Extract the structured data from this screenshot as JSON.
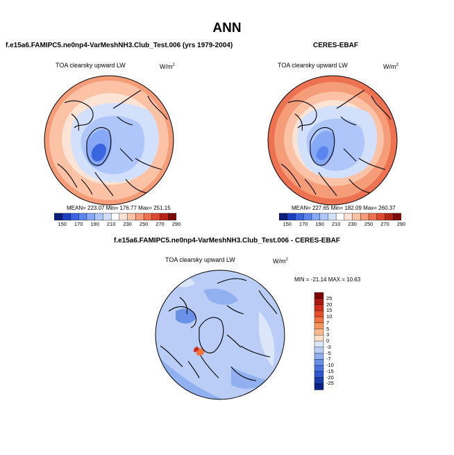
{
  "main_title": "ANN",
  "colors": {
    "abs_scale": [
      "#0a1e7a",
      "#1c3fbf",
      "#3a64e0",
      "#5c86ee",
      "#86a8f5",
      "#aec6fa",
      "#d3e0fb",
      "#ffffff",
      "#fde3d3",
      "#fbc2a6",
      "#f59c78",
      "#ec7251",
      "#dc4a31",
      "#b52616",
      "#7c0c06"
    ],
    "diff_scale": [
      "#7a0706",
      "#aa1a12",
      "#cf2e1c",
      "#e4502b",
      "#ef7440",
      "#f5975f",
      "#f9bb8e",
      "#fde0c7",
      "#dbe6fa",
      "#b9cdf6",
      "#90b0f0",
      "#6a91e8",
      "#4a72de",
      "#2f55cc",
      "#1b3ba8",
      "#0b2384"
    ],
    "continent_outline": "#000000"
  },
  "panels": [
    {
      "title": "f.e15a6.FAMIPC5.ne0np4-VarMeshNH3.Club_Test.006 (yrs 1979-2004)",
      "variable": "TOA clearsky upward LW",
      "units": "W/m",
      "units_sup": "2",
      "stats": "MEAN= 223.07  Min= 176.77  Max= 251.15"
    },
    {
      "title": "CERES-EBAF",
      "variable": "TOA clearsky upward LW",
      "units": "W/m",
      "units_sup": "2",
      "stats": "MEAN= 227.65  Min= 182.09  Max= 260.37"
    },
    {
      "title": "f.e15a6.FAMIPC5.ne0np4-VarMeshNH3.Club_Test.006 - CERES-EBAF",
      "variable": "TOA clearsky upward LW",
      "units": "W/m",
      "units_sup": "2",
      "stats": "MIN = -21.14 MAX =  10.63"
    }
  ],
  "chart_data": [
    {
      "type": "heatmap",
      "projection": "north polar stereographic",
      "title": "f.e15a6.FAMIPC5.ne0np4-VarMeshNH3.Club_Test.006 (yrs 1979-2004)",
      "variable": "TOA clearsky upward LW",
      "units": "W/m2",
      "mean": 223.07,
      "min": 176.77,
      "max": 251.15,
      "colorbar_ticks": [
        "150",
        "170",
        "190",
        "210",
        "230",
        "250",
        "270",
        "290"
      ]
    },
    {
      "type": "heatmap",
      "projection": "north polar stereographic",
      "title": "CERES-EBAF",
      "variable": "TOA clearsky upward LW",
      "units": "W/m2",
      "mean": 227.65,
      "min": 182.09,
      "max": 260.37,
      "colorbar_ticks": [
        "150",
        "170",
        "190",
        "210",
        "230",
        "250",
        "270",
        "290"
      ]
    },
    {
      "type": "heatmap",
      "projection": "north polar stereographic",
      "title": "f.e15a6.FAMIPC5.ne0np4-VarMeshNH3.Club_Test.006 - CERES-EBAF",
      "variable": "TOA clearsky upward LW",
      "units": "W/m2",
      "min": -21.14,
      "max": 10.63,
      "colorbar_ticks": [
        "25",
        "20",
        "15",
        "10",
        "7",
        "5",
        "3",
        "0",
        "-3",
        "-5",
        "-7",
        "-10",
        "-15",
        "-20",
        "-25"
      ]
    }
  ]
}
